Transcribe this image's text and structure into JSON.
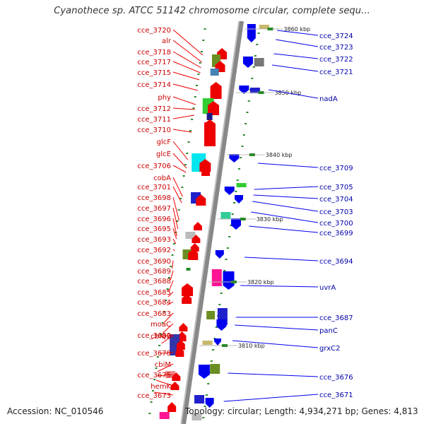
{
  "title": "Cyanothece sp. ATCC 51142 chromosome circular, complete sequ...",
  "accession": "Accession: NC_010546",
  "topology": "Topology: circular; Length: 4,934,271 bp; Genes: 4,813",
  "scale_ticks": [
    "3860 kbp",
    "3850 kbp",
    "3840 kbp",
    "3830 kbp",
    "3820 kbp",
    "3810 kbp"
  ],
  "left_labels": [
    "cce_3720",
    "alr",
    "cce_3718",
    "cce_3717",
    "cce_3715",
    "cce_3714",
    "phy",
    "cce_3712",
    "cce_3711",
    "cce_3710",
    "glcF",
    "glcE",
    "cce_3706",
    "cobA",
    "cce_3701",
    "cce_3698",
    "cce_3697",
    "cce_3696",
    "cce_3695",
    "cce_3693",
    "cce_3692",
    "cce_3690",
    "cce_3689",
    "cce_3688",
    "cce_3685",
    "cce_3684",
    "cce_3683",
    "moaC",
    "cce_3680",
    "cbiQ2",
    "cce_3678",
    "cbiM",
    "cce_3675",
    "hemK",
    "cce_3673"
  ],
  "right_labels": [
    "cce_3724",
    "cce_3723",
    "cce_3722",
    "cce_3721",
    "nadA",
    "cce_3709",
    "cce_3705",
    "cce_3704",
    "cce_3703",
    "cce_3700",
    "cce_3699",
    "cce_3694",
    "uvrA",
    "cce_3687",
    "panC",
    "grxC2",
    "cce_3676",
    "cce_3671"
  ],
  "colors": {
    "left_strand": "#ee0000",
    "right_strand": "#0000ee",
    "backbone": "#888888",
    "label_left": "#cc0000",
    "label_right": "#0000aa"
  }
}
